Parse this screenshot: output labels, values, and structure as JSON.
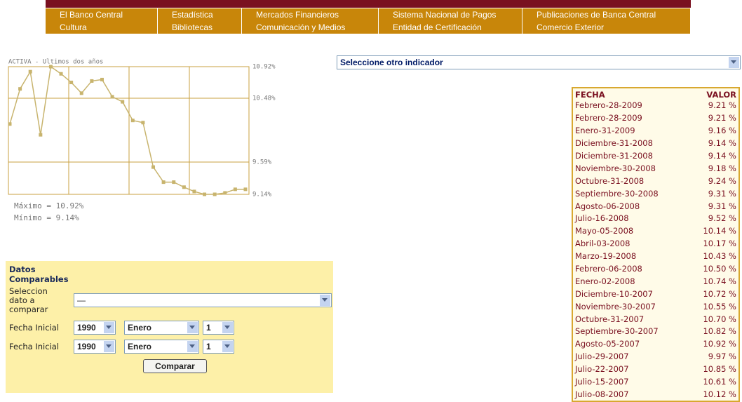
{
  "menu": {
    "rows": [
      [
        "El Banco Central",
        "Estadística",
        "Mercados Financieros",
        "Sistema Nacional de Pagos",
        "Publicaciones de Banca Central"
      ],
      [
        "Cultura",
        "Bibliotecas",
        "Comunicación y Medios",
        "Entidad de Certificación",
        "Comercio Exterior"
      ]
    ]
  },
  "chart_data": {
    "type": "line",
    "title": "ACTIVA - Ultimos dos años",
    "values": [
      10.12,
      10.61,
      10.85,
      9.97,
      10.92,
      10.82,
      10.7,
      10.55,
      10.72,
      10.74,
      10.5,
      10.43,
      10.17,
      10.14,
      9.52,
      9.31,
      9.31,
      9.24,
      9.18,
      9.14,
      9.14,
      9.16,
      9.21,
      9.21
    ],
    "color": "#c8b46e",
    "ylim": [
      9.14,
      10.92
    ],
    "yticks": [
      {
        "value": 10.92,
        "label": "10.92%"
      },
      {
        "value": 10.48,
        "label": "10.48%"
      },
      {
        "value": 9.59,
        "label": "9.59%"
      },
      {
        "value": 9.14,
        "label": "9.14%"
      }
    ],
    "grid": true,
    "annotations": [
      "Máximo = 10.92%",
      "Mínimo = 9.14%"
    ]
  },
  "indicator_select": "Seleccione otro indicador",
  "table": {
    "header": [
      "FECHA",
      "VALOR"
    ],
    "rows": [
      [
        "Febrero-28-2009",
        "9.21 %"
      ],
      [
        "Febrero-28-2009",
        "9.21 %"
      ],
      [
        "Enero-31-2009",
        "9.16 %"
      ],
      [
        "Diciembre-31-2008",
        "9.14 %"
      ],
      [
        "Diciembre-31-2008",
        "9.14 %"
      ],
      [
        "Noviembre-30-2008",
        "9.18 %"
      ],
      [
        "Octubre-31-2008",
        "9.24 %"
      ],
      [
        "Septiembre-30-2008",
        "9.31 %"
      ],
      [
        "Agosto-06-2008",
        "9.31 %"
      ],
      [
        "Julio-16-2008",
        "9.52 %"
      ],
      [
        "Mayo-05-2008",
        "10.14 %"
      ],
      [
        "Abril-03-2008",
        "10.17 %"
      ],
      [
        "Marzo-19-2008",
        "10.43 %"
      ],
      [
        "Febrero-06-2008",
        "10.50 %"
      ],
      [
        "Enero-02-2008",
        "10.74 %"
      ],
      [
        "Diciembre-10-2007",
        "10.72 %"
      ],
      [
        "Noviembre-30-2007",
        "10.55 %"
      ],
      [
        "Octubre-31-2007",
        "10.70 %"
      ],
      [
        "Septiembre-30-2007",
        "10.82 %"
      ],
      [
        "Agosto-05-2007",
        "10.92 %"
      ],
      [
        "Julio-29-2007",
        "9.97 %"
      ],
      [
        "Julio-22-2007",
        "10.85 %"
      ],
      [
        "Julio-15-2007",
        "10.61 %"
      ],
      [
        "Julio-08-2007",
        "10.12 %"
      ]
    ]
  },
  "form": {
    "title": "Datos Comparables",
    "select_label": "Seleccion dato a comparar",
    "select_value": "—",
    "rows": [
      {
        "label": "Fecha Inicial",
        "year": "1990",
        "month": "Enero",
        "day": "1"
      },
      {
        "label": "Fecha Inicial",
        "year": "1990",
        "month": "Enero",
        "day": "1"
      }
    ],
    "button": "Comparar"
  }
}
